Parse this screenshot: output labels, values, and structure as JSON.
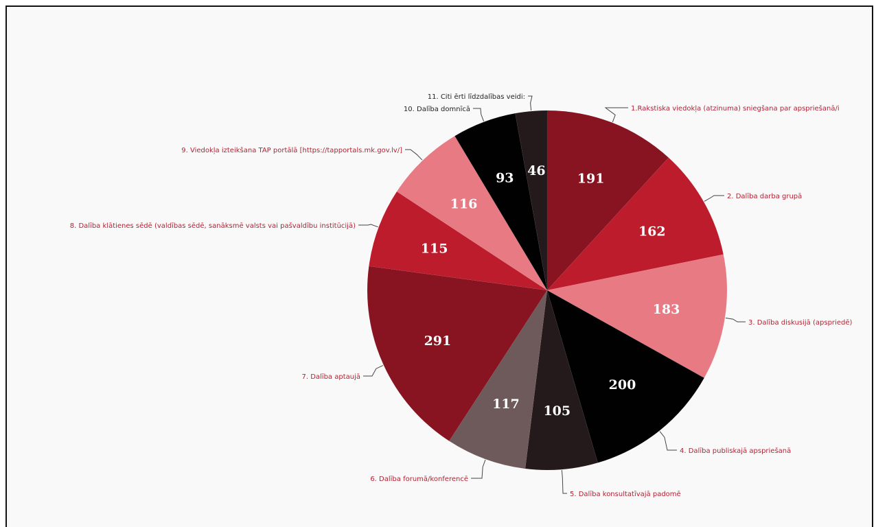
{
  "chart_data": {
    "type": "pie",
    "categories": [
      "1.Rakstiska viedokļa (atzinuma) sniegšana par apspriešanā/i",
      "2. Dalība darba grupā",
      "3. Dalība diskusijā (apspriedē)",
      "4. Dalība publiskajā apspriešanā",
      "5. Dalība konsultatīvajā padomē",
      "6. Dalība forumā/konferencē",
      "7. Dalība aptaujā",
      "8. Dalība klātienes sēdē (valdības sēdē, sanāksmē valsts vai pašvaldību institūcijā)",
      "9. Viedokļa izteikšana TAP portālā [https://tapportals.mk.gov.lv/]",
      "10. Dalība domnīcā",
      "11. Citi ērti līdzdalības veidi:"
    ],
    "values": [
      191,
      162,
      183,
      200,
      105,
      117,
      291,
      115,
      116,
      93,
      46
    ],
    "colors": [
      "#871420",
      "#bd1c2c",
      "#e87a84",
      "#010101",
      "#241a1b",
      "#6e5a5b",
      "#871420",
      "#bd1c2c",
      "#e87a84",
      "#010101",
      "#241a1b"
    ],
    "label_colors": [
      "#b22233",
      "#b22233",
      "#b22233",
      "#b22233",
      "#b22233",
      "#b22233",
      "#b22233",
      "#b22233",
      "#b22233",
      "#222222",
      "#222222"
    ],
    "start_angle_deg": 0,
    "direction": "clockwise"
  }
}
